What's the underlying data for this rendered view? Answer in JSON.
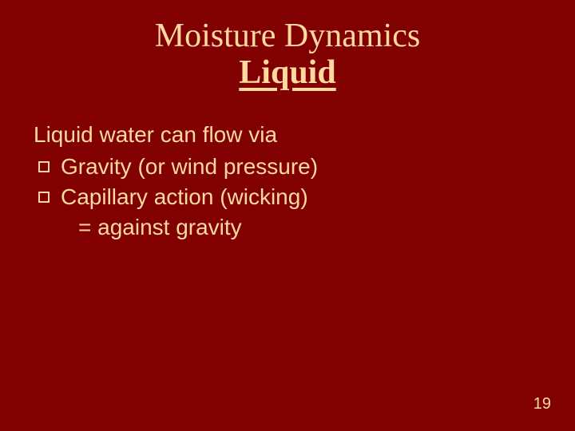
{
  "colors": {
    "background": "#810000",
    "text": "#ffd9a0",
    "bullet_border": "#ffd9a0",
    "bullet_fill": "#810000"
  },
  "typography": {
    "title_font": "Times New Roman",
    "body_font": "Verdana",
    "title_fontsize_pt": 42,
    "body_fontsize_pt": 28,
    "pagenum_fontsize_pt": 20
  },
  "title": {
    "line1": "Moisture Dynamics",
    "line2": "Liquid"
  },
  "content": {
    "intro": "Liquid water can flow via",
    "items": [
      {
        "text": "Gravity (or wind pressure)"
      },
      {
        "text": "Capillary action (wicking)"
      }
    ],
    "sub": "= against gravity"
  },
  "page_number": "19"
}
